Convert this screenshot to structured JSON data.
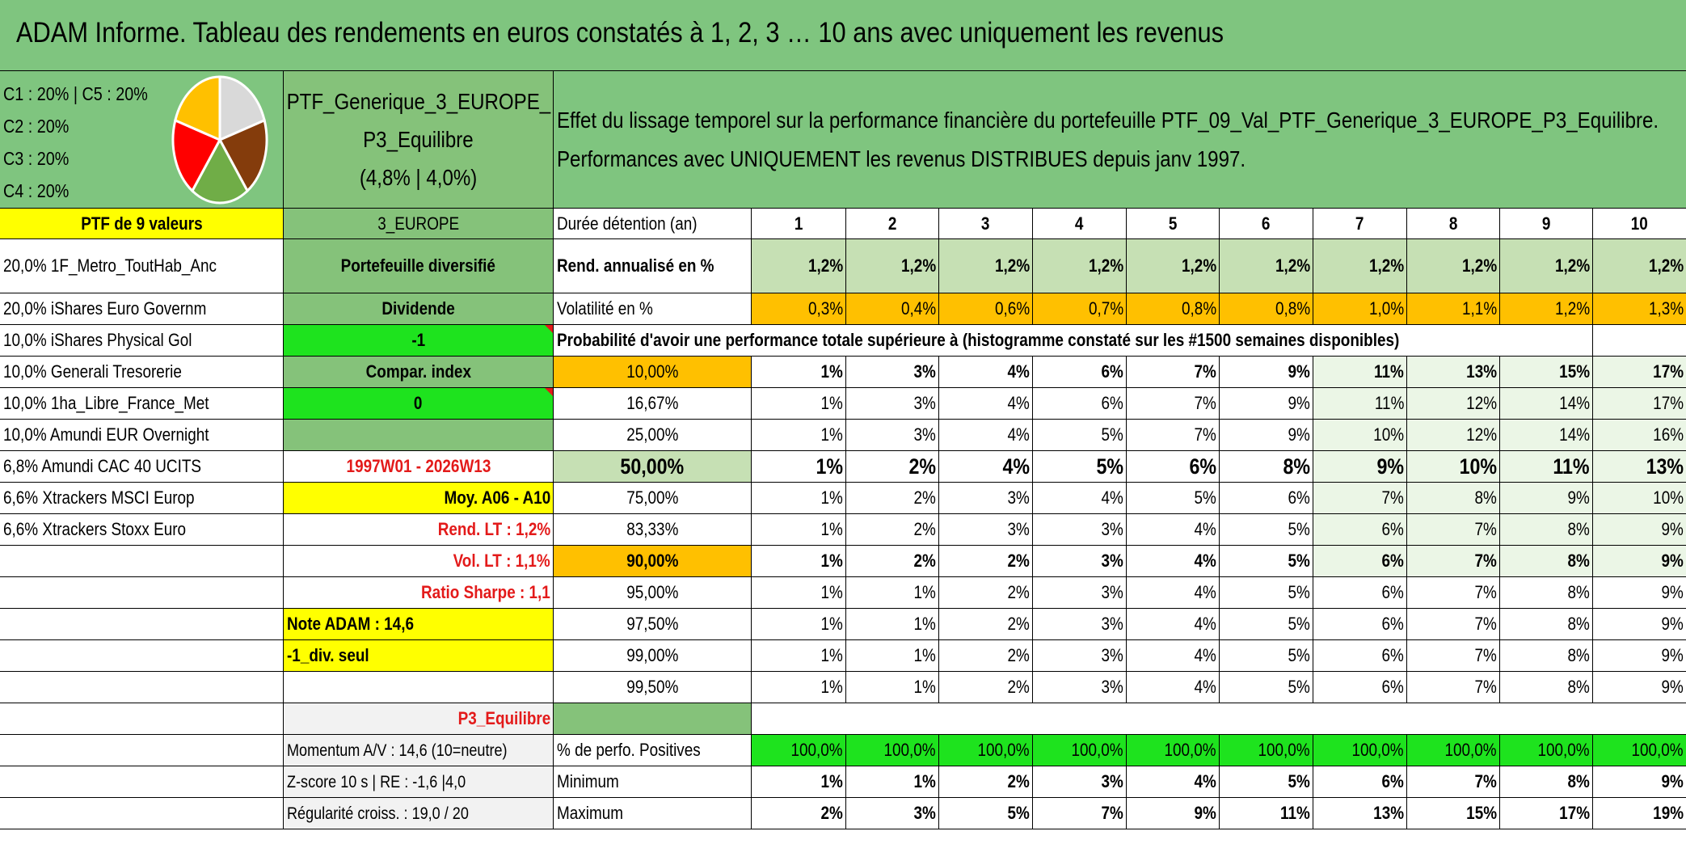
{
  "title": "ADAM Informe. Tableau des rendements en euros constatés à 1, 2, 3 … 10 ans avec uniquement les revenus",
  "allocation": {
    "lines": [
      "C1 : 20% | C5 : 20%",
      "C2 : 20%",
      "C3 : 20%",
      "C4 : 20%"
    ],
    "pie": [
      {
        "name": "C1",
        "value": 20,
        "color": "#ffc000"
      },
      {
        "name": "C2",
        "value": 20,
        "color": "#ff0000"
      },
      {
        "name": "C3",
        "value": 20,
        "color": "#70ad47"
      },
      {
        "name": "C4",
        "value": 20,
        "color": "#843c0c"
      },
      {
        "name": "C5",
        "value": 20,
        "color": "#d9d9d9"
      }
    ]
  },
  "ptf": {
    "name_line1": "PTF_Generique_3_EUROPE_",
    "name_line2": "P3_Equilibre",
    "name_line3": "(4,8% | 4,0%)",
    "description_line1": "Effet du lissage temporel sur la performance financière du portefeuille PTF_09_Val_PTF_Generique_3_EUROPE_P3_Equilibre.",
    "description_line2": "Performances avec UNIQUEMENT les revenus DISTRIBUES depuis janv 1997."
  },
  "holdings": {
    "header": "PTF de 9 valeurs",
    "items": [
      "20,0% 1F_Metro_ToutHab_Anc",
      "20,0% iShares Euro Governm",
      "10,0% iShares Physical Gol",
      "10,0% Generali Tresorerie",
      "10,0% 1ha_Libre_France_Met",
      "10,0% Amundi EUR Overnight",
      "6,8% Amundi CAC 40 UCITS",
      "6,6% Xtrackers MSCI Europ",
      "6,6% Xtrackers Stoxx Euro"
    ]
  },
  "info": {
    "zone": "3_EUROPE",
    "type": "Portefeuille diversifié",
    "dividend_label": "Dividende",
    "dividend_value": "-1",
    "compar_label": "Compar. index",
    "compar_value": "0",
    "period": "1997W01 - 2026W13",
    "moy": "Moy. A06 - A10",
    "rend_lt": "Rend. LT : 1,2%",
    "vol_lt": "Vol. LT : 1,1%",
    "sharpe": "Ratio Sharpe : 1,1",
    "note": "Note ADAM : 14,6",
    "div_seul": "-1_div. seul",
    "profile": "P3_Equilibre",
    "momentum": "Momentum A/V : 14,6 (10=neutre)",
    "zscore": "Z-score 10 s | RE : -1,6 |4,0",
    "regularite": "Régularité croiss. : 19,0 / 20"
  },
  "stats": {
    "duration_label": "Durée détention (an)",
    "years": [
      "1",
      "2",
      "3",
      "4",
      "5",
      "6",
      "7",
      "8",
      "9",
      "10"
    ],
    "rend_label": "Rend. annualisé en %",
    "rend": [
      "1,2%",
      "1,2%",
      "1,2%",
      "1,2%",
      "1,2%",
      "1,2%",
      "1,2%",
      "1,2%",
      "1,2%",
      "1,2%"
    ],
    "vol_label": "Volatilité en %",
    "vol": [
      "0,3%",
      "0,4%",
      "0,6%",
      "0,7%",
      "0,8%",
      "0,8%",
      "1,0%",
      "1,1%",
      "1,2%",
      "1,3%"
    ],
    "prob_header": "Probabilité d'avoir une performance totale supérieure à (histogramme constaté sur les #1500 semaines disponibles)",
    "prob_rows": [
      {
        "label": "10,00%",
        "values": [
          "1%",
          "3%",
          "4%",
          "6%",
          "7%",
          "9%",
          "11%",
          "13%",
          "15%",
          "17%"
        ]
      },
      {
        "label": "16,67%",
        "values": [
          "1%",
          "3%",
          "4%",
          "6%",
          "7%",
          "9%",
          "11%",
          "12%",
          "14%",
          "17%"
        ]
      },
      {
        "label": "25,00%",
        "values": [
          "1%",
          "3%",
          "4%",
          "5%",
          "7%",
          "9%",
          "10%",
          "12%",
          "14%",
          "16%"
        ]
      },
      {
        "label": "50,00%",
        "values": [
          "1%",
          "2%",
          "4%",
          "5%",
          "6%",
          "8%",
          "9%",
          "10%",
          "11%",
          "13%"
        ]
      },
      {
        "label": "75,00%",
        "values": [
          "1%",
          "2%",
          "3%",
          "4%",
          "5%",
          "6%",
          "7%",
          "8%",
          "9%",
          "10%"
        ]
      },
      {
        "label": "83,33%",
        "values": [
          "1%",
          "2%",
          "3%",
          "3%",
          "4%",
          "5%",
          "6%",
          "7%",
          "8%",
          "9%"
        ]
      },
      {
        "label": "90,00%",
        "values": [
          "1%",
          "2%",
          "2%",
          "3%",
          "4%",
          "5%",
          "6%",
          "7%",
          "8%",
          "9%"
        ]
      },
      {
        "label": "95,00%",
        "values": [
          "1%",
          "1%",
          "2%",
          "3%",
          "4%",
          "5%",
          "6%",
          "7%",
          "8%",
          "9%"
        ]
      },
      {
        "label": "97,50%",
        "values": [
          "1%",
          "1%",
          "2%",
          "3%",
          "4%",
          "5%",
          "6%",
          "7%",
          "8%",
          "9%"
        ]
      },
      {
        "label": "99,00%",
        "values": [
          "1%",
          "1%",
          "2%",
          "3%",
          "4%",
          "5%",
          "6%",
          "7%",
          "8%",
          "9%"
        ]
      },
      {
        "label": "99,50%",
        "values": [
          "1%",
          "1%",
          "2%",
          "3%",
          "4%",
          "5%",
          "6%",
          "7%",
          "8%",
          "9%"
        ]
      }
    ],
    "pos_label": "% de perfo. Positives",
    "pos": [
      "100,0%",
      "100,0%",
      "100,0%",
      "100,0%",
      "100,0%",
      "100,0%",
      "100,0%",
      "100,0%",
      "100,0%",
      "100,0%"
    ],
    "min_label": "Minimum",
    "min": [
      "1%",
      "1%",
      "2%",
      "3%",
      "4%",
      "5%",
      "6%",
      "7%",
      "8%",
      "9%"
    ],
    "max_label": "Maximum",
    "max": [
      "2%",
      "3%",
      "5%",
      "7%",
      "9%",
      "11%",
      "13%",
      "15%",
      "17%",
      "19%"
    ]
  }
}
